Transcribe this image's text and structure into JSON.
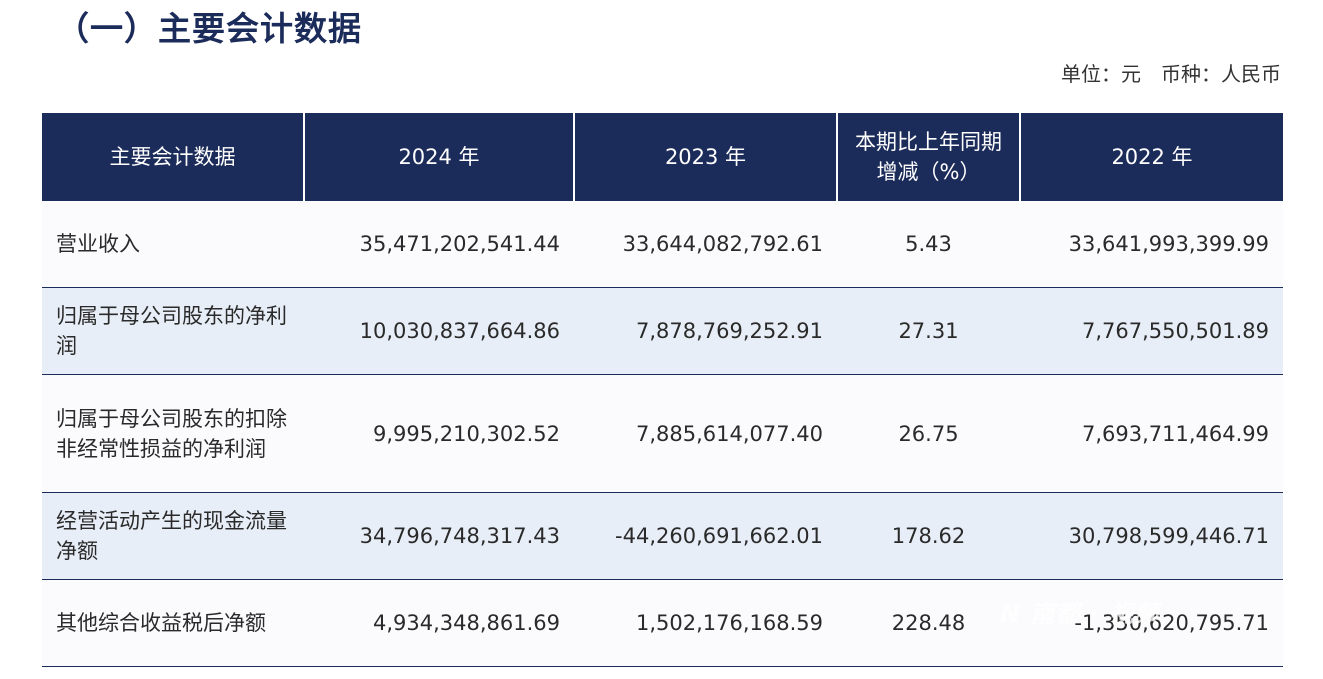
{
  "title": "（一）主要会计数据",
  "unit": {
    "unit_label": "单位：元",
    "currency_label": "币种：人民币"
  },
  "table": {
    "headers": [
      "主要会计数据",
      "2024 年",
      "2023 年",
      "本期比上年同期增减（%）",
      "2022 年"
    ],
    "rows": [
      {
        "label": "营业收入",
        "y2024": "35,471,202,541.44",
        "y2023": "33,644,082,792.61",
        "change": "5.43",
        "y2022": "33,641,993,399.99"
      },
      {
        "label": "归属于母公司股东的净利润",
        "y2024": "10,030,837,664.86",
        "y2023": "7,878,769,252.91",
        "change": "27.31",
        "y2022": "7,767,550,501.89"
      },
      {
        "label": "归属于母公司股东的扣除非经常性损益的净利润",
        "y2024": "9,995,210,302.52",
        "y2023": "7,885,614,077.40",
        "change": "26.75",
        "y2022": "7,693,711,464.99"
      },
      {
        "label": "经营活动产生的现金流量净额",
        "y2024": "34,796,748,317.43",
        "y2023": "-44,260,691,662.01",
        "change": "178.62",
        "y2022": "30,798,599,446.71"
      },
      {
        "label": "其他综合收益税后净额",
        "y2024": "4,934,348,861.69",
        "y2023": "1,502,176,168.59",
        "change": "228.48",
        "y2022": "-1,350,620,795.71"
      }
    ]
  },
  "watermark": "N 南都 · 视频"
}
